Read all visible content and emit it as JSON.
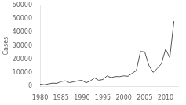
{
  "chart_data": {
    "type": "line",
    "ylabel": "Cases",
    "x": [
      1980,
      1981,
      1982,
      1983,
      1984,
      1985,
      1986,
      1987,
      1988,
      1989,
      1990,
      1991,
      1992,
      1993,
      1994,
      1995,
      1996,
      1997,
      1998,
      1999,
      2000,
      2001,
      2002,
      2003,
      2004,
      2005,
      2006,
      2007,
      2008,
      2009,
      2010,
      2011,
      2012
    ],
    "values": [
      1730,
      1248,
      1895,
      2463,
      2276,
      3589,
      4195,
      2823,
      3450,
      4157,
      4570,
      2719,
      4083,
      6335,
      4617,
      5137,
      7796,
      6564,
      7405,
      7298,
      7867,
      7580,
      9771,
      11647,
      25827,
      25616,
      15632,
      10454,
      13278,
      16858,
      27550,
      21291,
      48277
    ],
    "color": "#555555",
    "xlim": [
      1980,
      2013
    ],
    "xticks": [
      1980,
      1985,
      1990,
      1995,
      2000,
      2005,
      2010
    ],
    "ylim": [
      0,
      60000
    ],
    "yticks": [
      0,
      10000,
      20000,
      30000,
      40000,
      50000,
      60000
    ],
    "grid": false
  }
}
